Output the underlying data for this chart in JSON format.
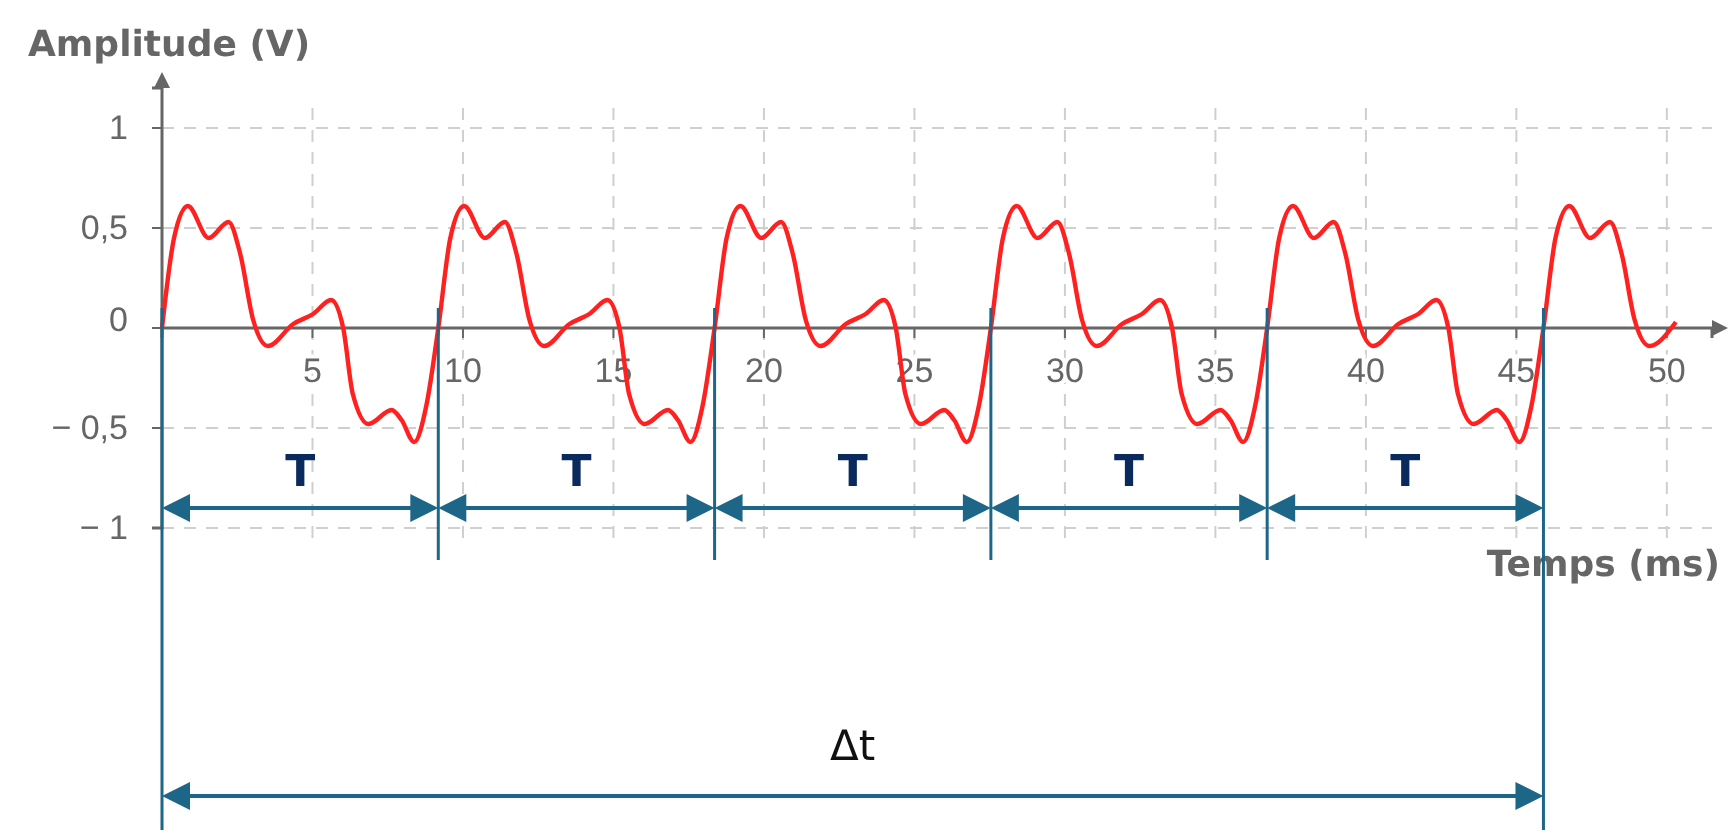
{
  "chart_data": {
    "type": "line",
    "xlabel": "Temps (ms)",
    "ylabel": "Amplitude (V)",
    "xlim": [
      0,
      51.5
    ],
    "ylim": [
      -1,
      1.2
    ],
    "xticks": [
      5,
      10,
      15,
      20,
      25,
      30,
      35,
      40,
      45,
      50
    ],
    "yticks": [
      {
        "value": -1,
        "label": "− 1"
      },
      {
        "value": -0.5,
        "label": "− 0,5"
      },
      0,
      {
        "value": 0.5,
        "label": "0,5"
      },
      1
    ],
    "grid": true,
    "series": [
      {
        "color": "#ff2020",
        "line_style": "solid",
        "marker": "none",
        "x": [
          0,
          0.4,
          0.86,
          1.55,
          2.21,
          2.6,
          3.03,
          3.52,
          4.36,
          5.02,
          5.62,
          6.02,
          6.34,
          6.86,
          7.63,
          7.96,
          8.38,
          8.78,
          9.18,
          9.58,
          10.04,
          10.73,
          11.39,
          11.78,
          12.21,
          12.7,
          13.54,
          14.2,
          14.8,
          15.2,
          15.52,
          16.04,
          16.81,
          17.14,
          17.56,
          17.96,
          18.36,
          18.76,
          19.22,
          19.91,
          20.57,
          20.96,
          21.39,
          21.88,
          22.72,
          23.38,
          23.98,
          24.38,
          24.7,
          25.22,
          25.99,
          26.32,
          26.74,
          27.14,
          27.54,
          27.94,
          28.4,
          29.09,
          29.75,
          30.14,
          30.57,
          31.06,
          31.9,
          32.56,
          33.16,
          33.56,
          33.88,
          34.4,
          35.17,
          35.5,
          35.92,
          36.32,
          36.72,
          37.12,
          37.58,
          38.27,
          38.93,
          39.32,
          39.75,
          40.24,
          41.08,
          41.74,
          42.34,
          42.74,
          43.06,
          43.58,
          44.35,
          44.68,
          45.1,
          45.5,
          45.9,
          46.3,
          46.76,
          47.45,
          48.11,
          48.5,
          48.93,
          49.42,
          50.3
        ],
        "values": [
          0,
          0.45,
          0.61,
          0.45,
          0.53,
          0.37,
          0.04,
          -0.09,
          0.02,
          0.07,
          0.14,
          0,
          -0.33,
          -0.48,
          -0.41,
          -0.46,
          -0.57,
          -0.39,
          0,
          0.45,
          0.61,
          0.45,
          0.53,
          0.37,
          0.04,
          -0.09,
          0.02,
          0.07,
          0.14,
          0,
          -0.33,
          -0.48,
          -0.41,
          -0.46,
          -0.57,
          -0.39,
          0,
          0.45,
          0.61,
          0.45,
          0.53,
          0.37,
          0.04,
          -0.09,
          0.02,
          0.07,
          0.14,
          0,
          -0.33,
          -0.48,
          -0.41,
          -0.46,
          -0.57,
          -0.39,
          0,
          0.45,
          0.61,
          0.45,
          0.53,
          0.37,
          0.04,
          -0.09,
          0.02,
          0.07,
          0.14,
          0,
          -0.33,
          -0.48,
          -0.41,
          -0.46,
          -0.57,
          -0.39,
          0,
          0.45,
          0.61,
          0.45,
          0.53,
          0.37,
          0.04,
          -0.09,
          0.02,
          0.07,
          0.14,
          0,
          -0.33,
          -0.48,
          -0.41,
          -0.46,
          -0.57,
          -0.39,
          0,
          0.45,
          0.61,
          0.45,
          0.53,
          0.37,
          0.04,
          -0.09,
          0.03
        ]
      }
    ],
    "ref_lines": [
      {
        "axis": "x",
        "value": 0,
        "color": "#1e6688"
      },
      {
        "axis": "x",
        "value": 9.18,
        "color": "#1e6688"
      },
      {
        "axis": "x",
        "value": 18.36,
        "color": "#1e6688"
      },
      {
        "axis": "x",
        "value": 27.54,
        "color": "#1e6688"
      },
      {
        "axis": "x",
        "value": 36.72,
        "color": "#1e6688"
      },
      {
        "axis": "x",
        "value": 45.9,
        "color": "#1e6688"
      }
    ],
    "annotations": [
      "T",
      "T",
      "T",
      "T",
      "T",
      "Δt"
    ]
  }
}
